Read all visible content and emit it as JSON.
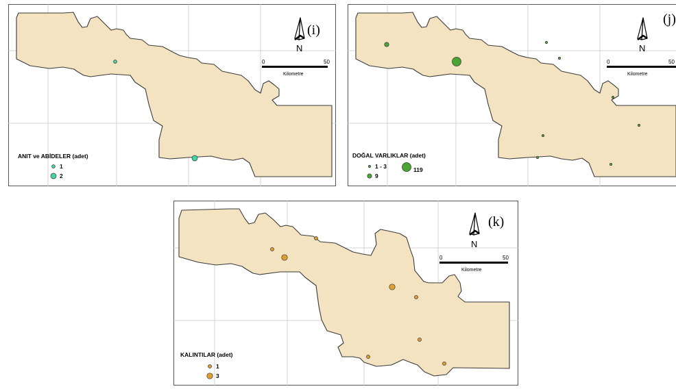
{
  "maps": [
    {
      "id": "i",
      "label": "(i)",
      "legend_title": "ANIT ve ABİDELER (adet)",
      "color": "#40d6a6",
      "legend_items": [
        {
          "label": "1",
          "size": "small"
        },
        {
          "label": "2",
          "size": "large"
        }
      ],
      "point_count_small": 1,
      "point_count_large": 1
    },
    {
      "id": "j",
      "label": "(j)",
      "legend_title": "DOĞAL VARLIKLAR (adet)",
      "color": "#4aa532",
      "legend_items": [
        {
          "label": "1 - 3",
          "size": "small"
        },
        {
          "label": "9",
          "size": "medium"
        },
        {
          "label": "119",
          "size": "large"
        }
      ],
      "point_count_small": 7,
      "point_count_medium": 1,
      "point_count_large": 1
    },
    {
      "id": "k",
      "label": "(k)",
      "legend_title": "KALINTILAR (adet)",
      "color": "#e0a030",
      "legend_items": [
        {
          "label": "1",
          "size": "small"
        },
        {
          "label": "3",
          "size": "large"
        }
      ],
      "point_count_small": 6,
      "point_count_large": 2
    }
  ],
  "north_arrow": {
    "letter": "N"
  },
  "scale_bar": {
    "start": "0",
    "end": "50",
    "unit": "Kilometre"
  }
}
